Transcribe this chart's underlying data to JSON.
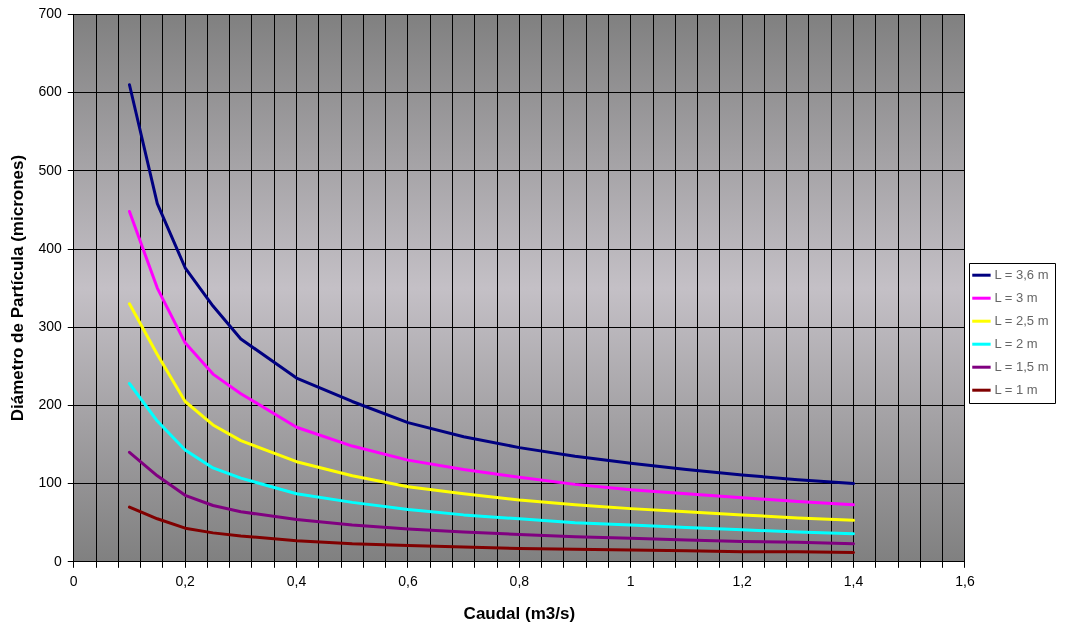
{
  "chart_data": {
    "type": "line",
    "xlabel": "Caudal (m3/s)",
    "ylabel": "Diámetro de Partícula (micrones)",
    "xlim": [
      0,
      1.6
    ],
    "ylim": [
      0,
      700
    ],
    "xticks": [
      0,
      {
        "value": 0.04,
        "label": null
      },
      {
        "value": 0.08,
        "label": null
      },
      {
        "value": 0.12,
        "label": null
      },
      {
        "value": 0.16,
        "label": null
      },
      {
        "value": 0.2,
        "label": "0,2"
      },
      {
        "value": 0.24,
        "label": null
      },
      {
        "value": 0.28,
        "label": null
      },
      {
        "value": 0.32,
        "label": null
      },
      {
        "value": 0.36,
        "label": null
      },
      {
        "value": 0.4,
        "label": "0,4"
      },
      {
        "value": 0.44,
        "label": null
      },
      {
        "value": 0.48,
        "label": null
      },
      {
        "value": 0.52,
        "label": null
      },
      {
        "value": 0.56,
        "label": null
      },
      {
        "value": 0.6,
        "label": "0,6"
      },
      {
        "value": 0.64,
        "label": null
      },
      {
        "value": 0.68,
        "label": null
      },
      {
        "value": 0.72,
        "label": null
      },
      {
        "value": 0.76,
        "label": null
      },
      {
        "value": 0.8,
        "label": "0,8"
      },
      {
        "value": 0.84,
        "label": null
      },
      {
        "value": 0.88,
        "label": null
      },
      {
        "value": 0.92,
        "label": null
      },
      {
        "value": 0.96,
        "label": null
      },
      1,
      {
        "value": 1.04,
        "label": null
      },
      {
        "value": 1.08,
        "label": null
      },
      {
        "value": 1.12,
        "label": null
      },
      {
        "value": 1.16,
        "label": null
      },
      {
        "value": 1.2,
        "label": "1,2"
      },
      {
        "value": 1.24,
        "label": null
      },
      {
        "value": 1.28,
        "label": null
      },
      {
        "value": 1.32,
        "label": null
      },
      {
        "value": 1.36,
        "label": null
      },
      {
        "value": 1.4,
        "label": "1,4"
      },
      {
        "value": 1.44,
        "label": null
      },
      {
        "value": 1.48,
        "label": null
      },
      {
        "value": 1.52,
        "label": null
      },
      {
        "value": 1.56,
        "label": null
      },
      {
        "value": 1.6,
        "label": "1,6"
      }
    ],
    "yticks": [
      0,
      100,
      200,
      300,
      400,
      500,
      600,
      700
    ],
    "grid": true,
    "legend": "right",
    "marker": "none",
    "line_style": "solid",
    "x": [
      0.1,
      0.15,
      0.2,
      0.25,
      0.3,
      0.4,
      0.5,
      0.6,
      0.7,
      0.8,
      0.9,
      1.0,
      1.1,
      1.2,
      1.3,
      1.4
    ],
    "series": [
      {
        "name": "L = 3,6 m",
        "color": "#000080",
        "values": [
          610,
          458,
          376,
          327,
          285,
          235,
          205,
          178,
          160,
          146,
          135,
          126,
          118,
          111,
          105,
          100
        ]
      },
      {
        "name": "L = 3 m",
        "color": "#ff00ff",
        "values": [
          448,
          350,
          280,
          240,
          215,
          172,
          148,
          130,
          118,
          108,
          99,
          92,
          87,
          82,
          77,
          73
        ]
      },
      {
        "name": "L = 2,5 m",
        "color": "#ffff00",
        "values": [
          330,
          265,
          205,
          175,
          155,
          128,
          110,
          96,
          87,
          79,
          73,
          68,
          64,
          60,
          56,
          53
        ]
      },
      {
        "name": "L = 2 m",
        "color": "#00ffff",
        "values": [
          228,
          180,
          143,
          120,
          107,
          87,
          76,
          67,
          60,
          55,
          50,
          47,
          44,
          41,
          38,
          36
        ]
      },
      {
        "name": "L = 1,5 m",
        "color": "#800080",
        "values": [
          140,
          110,
          85,
          72,
          64,
          54,
          47,
          42,
          38,
          35,
          32,
          30,
          28,
          26,
          25,
          23
        ]
      },
      {
        "name": "L = 1 m",
        "color": "#800000",
        "values": [
          70,
          55,
          43,
          37,
          33,
          27,
          23,
          21,
          19,
          17,
          16,
          15,
          14,
          13,
          13,
          12
        ]
      }
    ]
  }
}
